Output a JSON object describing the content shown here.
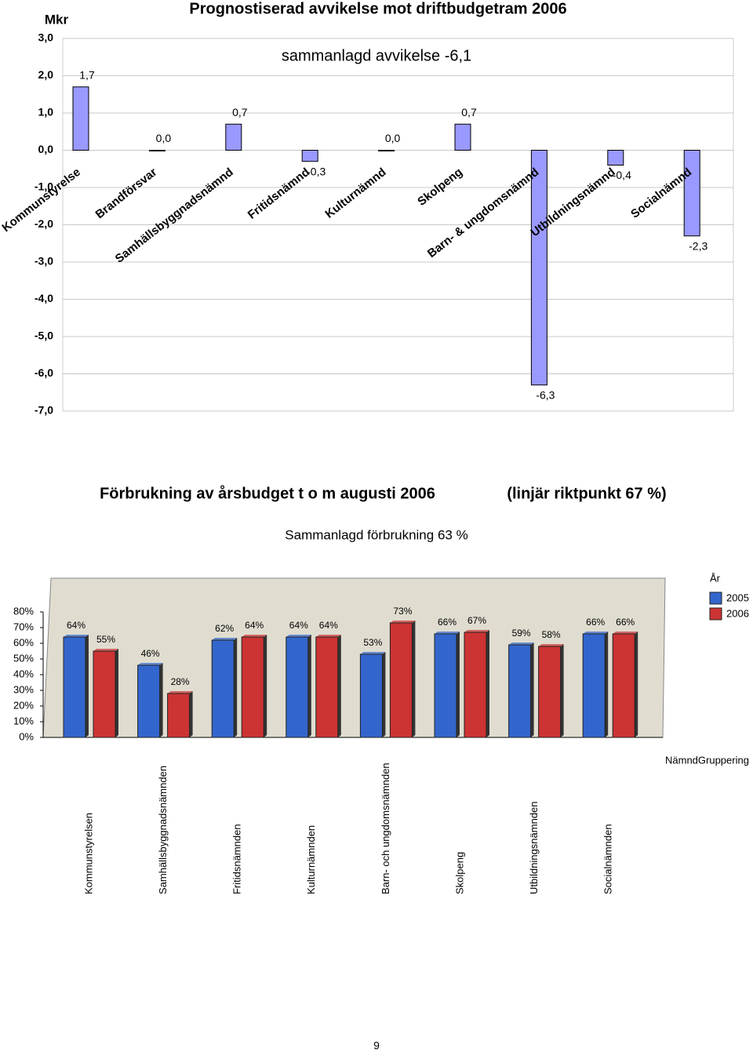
{
  "chart_data": [
    {
      "type": "bar",
      "title": "Prognostiserad avvikelse mot driftbudgetram 2006",
      "subtitle": "sammanlagd avvikelse -6,1",
      "y_label": "Mkr",
      "categories": [
        "Kommunstyrelse",
        "Brandförsvar",
        "Samhällsbyggnadsnämnd",
        "Fritidsnämnd",
        "Kulturnämnd",
        "Skolpeng",
        "Barn- & ungdomsnämnd",
        "Utbildningsnämnd",
        "Socialnämnd"
      ],
      "values": [
        1.7,
        0.0,
        0.7,
        -0.3,
        0.0,
        0.7,
        -6.3,
        -0.4,
        -2.3
      ],
      "value_labels": [
        "1,7",
        "0,0",
        "0,7",
        "-0,3",
        "0,0",
        "0,7",
        "-6,3",
        "-0,4",
        "-2,3"
      ],
      "color": "#9999ff",
      "ylim": [
        -7,
        3
      ],
      "yticks": [
        {
          "value": 3,
          "label": "3,0"
        },
        {
          "value": 2,
          "label": "2,0"
        },
        {
          "value": 1,
          "label": "1,0"
        },
        {
          "value": 0,
          "label": "0,0"
        },
        {
          "value": -1,
          "label": "-1,0"
        },
        {
          "value": -2,
          "label": "-2,0"
        },
        {
          "value": -3,
          "label": "-3,0"
        },
        {
          "value": -4,
          "label": "-4,0"
        },
        {
          "value": -5,
          "label": "-5,0"
        },
        {
          "value": -6,
          "label": "-6,0"
        },
        {
          "value": -7,
          "label": "-7,0"
        }
      ],
      "grid": true
    },
    {
      "type": "grouped-bar",
      "title": "Förbrukning av årsbudget t o m augusti 2006",
      "annotation": "(linjär riktpunkt 67 %)",
      "subtitle": "Sammanlagd förbrukning 63 %",
      "x_label": "NämndGruppering",
      "legend_title": "År",
      "legend": "top-right",
      "categories": [
        "Kommunstyrelsen",
        "Samhällsbyggnadsnämnden",
        "Fritidsnämnden",
        "Kulturnämnden",
        "Barn- och ungdomsnämnden",
        "Skolpeng",
        "Utbildningsnämnden",
        "Socialnämnden"
      ],
      "series": [
        {
          "name": "2005",
          "color": "#3366cc",
          "values": [
            64,
            46,
            62,
            64,
            53,
            66,
            59,
            66
          ],
          "value_labels": [
            "64%",
            "46%",
            "62%",
            "64%",
            "53%",
            "66%",
            "59%",
            "66%"
          ]
        },
        {
          "name": "2006",
          "color": "#cc3333",
          "values": [
            55,
            28,
            64,
            64,
            73,
            67,
            58,
            66
          ],
          "value_labels": [
            "55%",
            "28%",
            "64%",
            "64%",
            "73%",
            "67%",
            "58%",
            "66%"
          ]
        }
      ],
      "ylim": [
        0,
        80
      ],
      "yticks": [
        {
          "value": 80,
          "label": "80%"
        },
        {
          "value": 70,
          "label": "70%"
        },
        {
          "value": 60,
          "label": "60%"
        },
        {
          "value": 50,
          "label": "50%"
        },
        {
          "value": 40,
          "label": "40%"
        },
        {
          "value": 30,
          "label": "30%"
        },
        {
          "value": 20,
          "label": "20%"
        },
        {
          "value": 10,
          "label": "10%"
        },
        {
          "value": 0,
          "label": "0%"
        }
      ],
      "grid": false
    }
  ],
  "page_number": "9"
}
